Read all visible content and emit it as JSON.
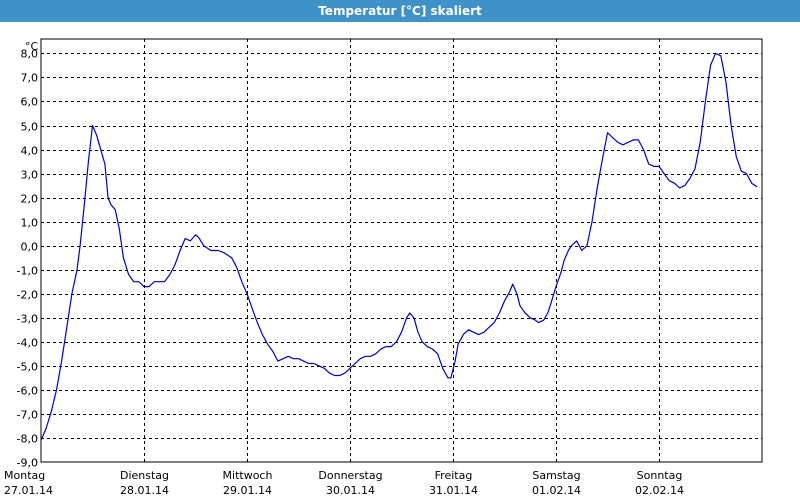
{
  "window": {
    "title": "Temperatur [°C] skaliert"
  },
  "chart_data": {
    "type": "line",
    "title": "Temperatur [°C] skaliert",
    "unit_label": "°C",
    "ylim": [
      -9.0,
      8.6
    ],
    "y_ticks": [
      {
        "value": 8,
        "label": "8,0"
      },
      {
        "value": 7,
        "label": "7,0"
      },
      {
        "value": 6,
        "label": "6,0"
      },
      {
        "value": 5,
        "label": "5,0"
      },
      {
        "value": 4,
        "label": "4,0"
      },
      {
        "value": 3,
        "label": "3,0"
      },
      {
        "value": 2,
        "label": "2,0"
      },
      {
        "value": 1,
        "label": "1,0"
      },
      {
        "value": 0,
        "label": "0,0"
      },
      {
        "value": -1,
        "label": "-1,0"
      },
      {
        "value": -2,
        "label": "-2,0"
      },
      {
        "value": -3,
        "label": "-3,0"
      },
      {
        "value": -4,
        "label": "-4,0"
      },
      {
        "value": -5,
        "label": "-5,0"
      },
      {
        "value": -6,
        "label": "-6,0"
      },
      {
        "value": -7,
        "label": "-7,0"
      },
      {
        "value": -8,
        "label": "-8,0"
      },
      {
        "value": -9,
        "label": "-9,0"
      }
    ],
    "xlim": [
      0,
      7
    ],
    "x_ticks": [
      {
        "value": 0,
        "day": "Montag",
        "date": "27.01.14"
      },
      {
        "value": 1,
        "day": "Dienstag",
        "date": "28.01.14"
      },
      {
        "value": 2,
        "day": "Mittwoch",
        "date": "29.01.14"
      },
      {
        "value": 3,
        "day": "Donnerstag",
        "date": "30.01.14"
      },
      {
        "value": 4,
        "day": "Freitag",
        "date": "31.01.14"
      },
      {
        "value": 5,
        "day": "Samstag",
        "date": "01.02.14"
      },
      {
        "value": 6,
        "day": "Sonntag",
        "date": "02.02.14"
      }
    ],
    "grid": true,
    "line_color": "#0000cc",
    "series": [
      {
        "points": [
          [
            0.0,
            -8.1
          ],
          [
            0.05,
            -7.6
          ],
          [
            0.1,
            -6.9
          ],
          [
            0.15,
            -6.0
          ],
          [
            0.2,
            -4.8
          ],
          [
            0.25,
            -3.4
          ],
          [
            0.3,
            -2.0
          ],
          [
            0.35,
            -1.0
          ],
          [
            0.38,
            0.0
          ],
          [
            0.42,
            1.7
          ],
          [
            0.46,
            3.5
          ],
          [
            0.5,
            5.0
          ],
          [
            0.54,
            4.6
          ],
          [
            0.58,
            4.0
          ],
          [
            0.62,
            3.4
          ],
          [
            0.65,
            2.0
          ],
          [
            0.68,
            1.7
          ],
          [
            0.72,
            1.5
          ],
          [
            0.76,
            0.7
          ],
          [
            0.8,
            -0.5
          ],
          [
            0.85,
            -1.2
          ],
          [
            0.9,
            -1.5
          ],
          [
            0.95,
            -1.5
          ],
          [
            1.0,
            -1.7
          ],
          [
            1.05,
            -1.7
          ],
          [
            1.1,
            -1.5
          ],
          [
            1.15,
            -1.5
          ],
          [
            1.2,
            -1.5
          ],
          [
            1.25,
            -1.2
          ],
          [
            1.3,
            -0.8
          ],
          [
            1.35,
            -0.2
          ],
          [
            1.4,
            0.3
          ],
          [
            1.45,
            0.2
          ],
          [
            1.5,
            0.45
          ],
          [
            1.53,
            0.35
          ],
          [
            1.58,
            0.0
          ],
          [
            1.65,
            -0.2
          ],
          [
            1.72,
            -0.2
          ],
          [
            1.78,
            -0.3
          ],
          [
            1.85,
            -0.5
          ],
          [
            1.9,
            -0.9
          ],
          [
            1.95,
            -1.5
          ],
          [
            2.0,
            -2.0
          ],
          [
            2.05,
            -2.6
          ],
          [
            2.1,
            -3.2
          ],
          [
            2.15,
            -3.7
          ],
          [
            2.2,
            -4.1
          ],
          [
            2.25,
            -4.4
          ],
          [
            2.3,
            -4.8
          ],
          [
            2.35,
            -4.7
          ],
          [
            2.4,
            -4.6
          ],
          [
            2.45,
            -4.7
          ],
          [
            2.5,
            -4.7
          ],
          [
            2.55,
            -4.8
          ],
          [
            2.6,
            -4.9
          ],
          [
            2.65,
            -4.9
          ],
          [
            2.7,
            -5.0
          ],
          [
            2.75,
            -5.1
          ],
          [
            2.8,
            -5.3
          ],
          [
            2.85,
            -5.4
          ],
          [
            2.9,
            -5.4
          ],
          [
            2.95,
            -5.3
          ],
          [
            3.0,
            -5.1
          ],
          [
            3.05,
            -4.9
          ],
          [
            3.1,
            -4.7
          ],
          [
            3.15,
            -4.6
          ],
          [
            3.2,
            -4.6
          ],
          [
            3.25,
            -4.5
          ],
          [
            3.3,
            -4.3
          ],
          [
            3.35,
            -4.2
          ],
          [
            3.4,
            -4.2
          ],
          [
            3.45,
            -4.0
          ],
          [
            3.5,
            -3.6
          ],
          [
            3.55,
            -3.0
          ],
          [
            3.58,
            -2.8
          ],
          [
            3.62,
            -3.0
          ],
          [
            3.66,
            -3.6
          ],
          [
            3.7,
            -4.0
          ],
          [
            3.75,
            -4.2
          ],
          [
            3.8,
            -4.3
          ],
          [
            3.85,
            -4.5
          ],
          [
            3.9,
            -5.1
          ],
          [
            3.95,
            -5.5
          ],
          [
            3.98,
            -5.5
          ],
          [
            4.02,
            -4.8
          ],
          [
            4.05,
            -4.1
          ],
          [
            4.1,
            -3.7
          ],
          [
            4.15,
            -3.5
          ],
          [
            4.2,
            -3.6
          ],
          [
            4.25,
            -3.7
          ],
          [
            4.3,
            -3.6
          ],
          [
            4.35,
            -3.4
          ],
          [
            4.4,
            -3.2
          ],
          [
            4.45,
            -2.8
          ],
          [
            4.5,
            -2.3
          ],
          [
            4.55,
            -1.9
          ],
          [
            4.58,
            -1.6
          ],
          [
            4.62,
            -2.0
          ],
          [
            4.65,
            -2.5
          ],
          [
            4.7,
            -2.8
          ],
          [
            4.75,
            -3.0
          ],
          [
            4.8,
            -3.1
          ],
          [
            4.83,
            -3.2
          ],
          [
            4.88,
            -3.1
          ],
          [
            4.92,
            -2.8
          ],
          [
            4.95,
            -2.4
          ],
          [
            5.0,
            -1.7
          ],
          [
            5.05,
            -1.1
          ],
          [
            5.08,
            -0.6
          ],
          [
            5.12,
            -0.2
          ],
          [
            5.15,
            0.0
          ],
          [
            5.2,
            0.2
          ],
          [
            5.25,
            -0.2
          ],
          [
            5.3,
            0.0
          ],
          [
            5.35,
            1.0
          ],
          [
            5.4,
            2.4
          ],
          [
            5.45,
            3.6
          ],
          [
            5.5,
            4.7
          ],
          [
            5.55,
            4.5
          ],
          [
            5.6,
            4.3
          ],
          [
            5.65,
            4.2
          ],
          [
            5.7,
            4.3
          ],
          [
            5.75,
            4.4
          ],
          [
            5.8,
            4.4
          ],
          [
            5.85,
            4.0
          ],
          [
            5.9,
            3.4
          ],
          [
            5.95,
            3.3
          ],
          [
            6.0,
            3.3
          ],
          [
            6.05,
            3.0
          ],
          [
            6.1,
            2.7
          ],
          [
            6.15,
            2.6
          ],
          [
            6.2,
            2.4
          ],
          [
            6.25,
            2.5
          ],
          [
            6.3,
            2.8
          ],
          [
            6.35,
            3.2
          ],
          [
            6.4,
            4.3
          ],
          [
            6.45,
            6.0
          ],
          [
            6.5,
            7.5
          ],
          [
            6.55,
            8.0
          ],
          [
            6.6,
            7.9
          ],
          [
            6.65,
            6.8
          ],
          [
            6.7,
            5.0
          ],
          [
            6.75,
            3.7
          ],
          [
            6.8,
            3.1
          ],
          [
            6.85,
            3.0
          ],
          [
            6.9,
            2.6
          ],
          [
            6.95,
            2.45
          ]
        ]
      }
    ]
  }
}
